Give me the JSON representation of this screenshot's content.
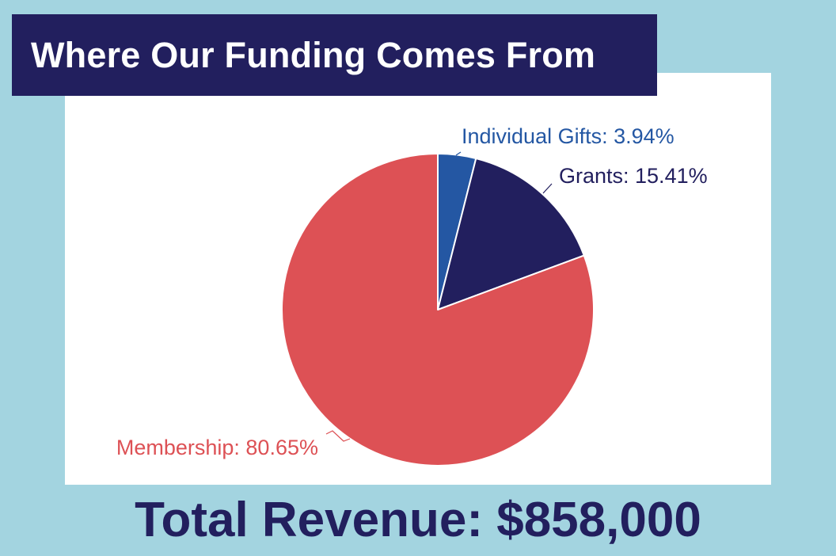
{
  "header": {
    "title": "Where Our Funding Comes From"
  },
  "footer": {
    "total_revenue": "Total Revenue: $858,000"
  },
  "colors": {
    "background": "#a3d4e0",
    "navy": "#221f5e",
    "membership": "#dd5155",
    "grants": "#221f5e",
    "individual_gifts": "#2457a3"
  },
  "chart_data": {
    "type": "pie",
    "title": "Where Our Funding Comes From",
    "categories": [
      "Individual Gifts",
      "Grants",
      "Membership"
    ],
    "values": [
      3.94,
      15.41,
      80.65
    ],
    "unit": "%",
    "labels": [
      "Individual Gifts: 3.94%",
      "Grants: 15.41%",
      "Membership: 80.65%"
    ],
    "colors": [
      "#2457a3",
      "#221f5e",
      "#dd5155"
    ],
    "start": "12 o'clock, clockwise",
    "legend": "none"
  }
}
